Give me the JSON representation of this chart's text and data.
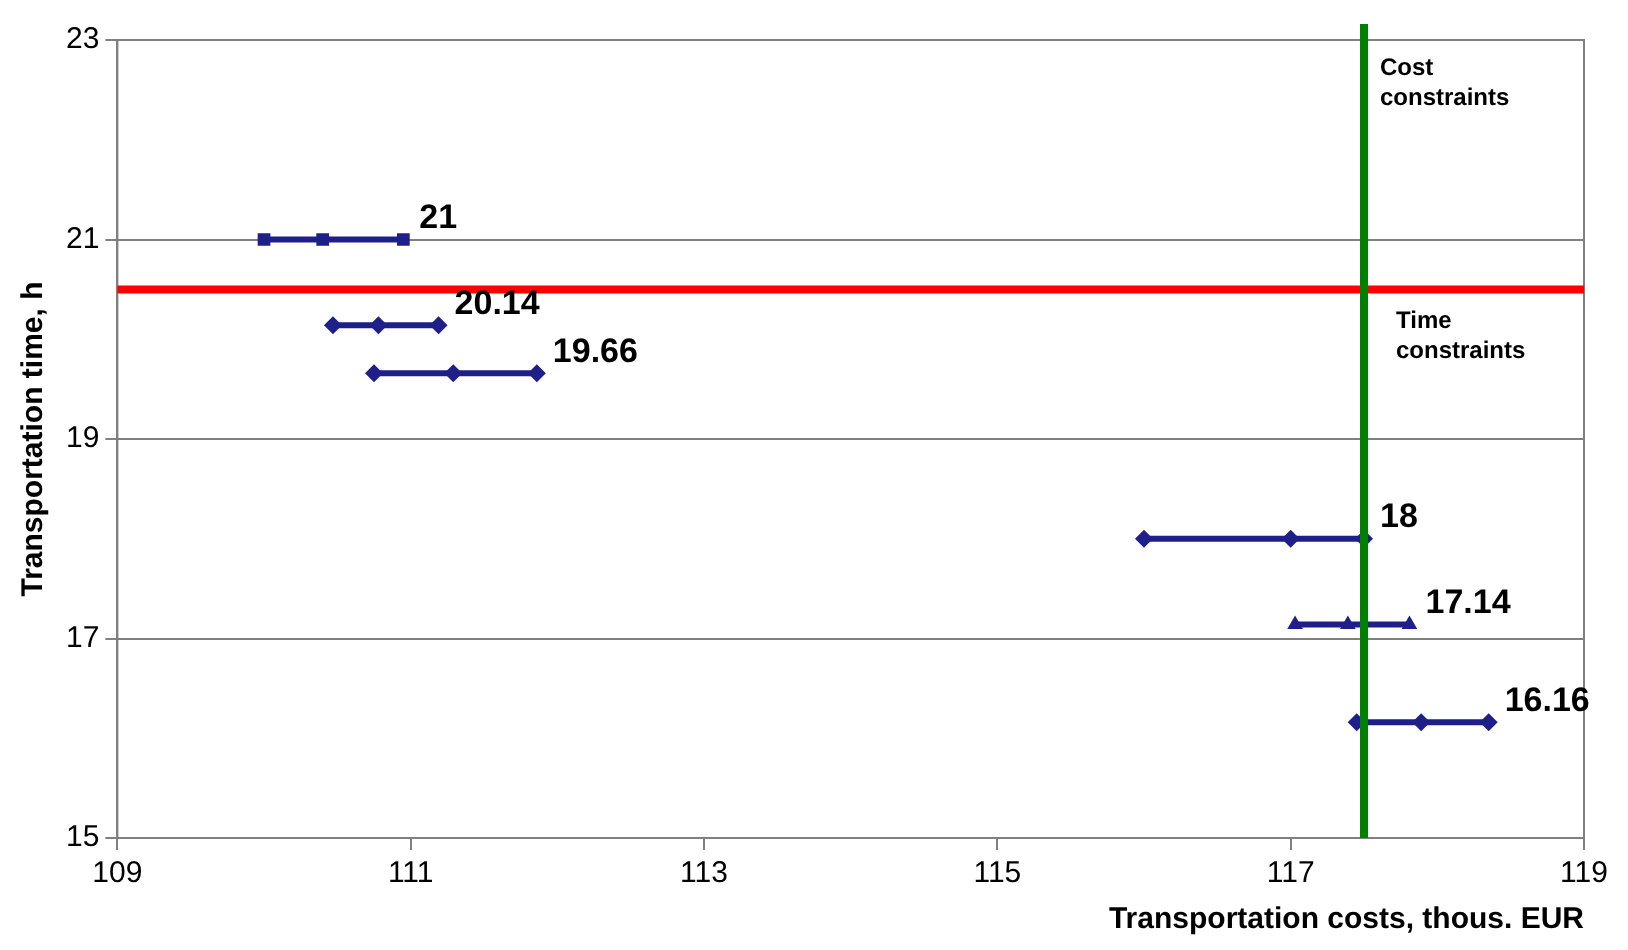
{
  "chart_data": {
    "type": "line",
    "xlabel": "Transportation costs, thous. EUR",
    "ylabel": "Transportation time, h",
    "xlim": [
      109,
      119
    ],
    "xticks": [
      109,
      111,
      113,
      115,
      117,
      119
    ],
    "ylim": [
      15,
      23
    ],
    "yticks": [
      15,
      17,
      19,
      21,
      23
    ],
    "grid": "y",
    "legend": false,
    "series": [
      {
        "color": "#1f1f8a",
        "marker": "square",
        "x": [
          110.0,
          110.4,
          110.95
        ],
        "values": [
          21,
          21,
          21
        ],
        "value_labels": [
          null,
          null,
          "21"
        ]
      },
      {
        "color": "#1f1f8a",
        "marker": "diamond",
        "x": [
          110.47,
          110.78,
          111.19
        ],
        "values": [
          20.14,
          20.14,
          20.14
        ],
        "value_labels": [
          null,
          null,
          "20.14"
        ]
      },
      {
        "color": "#1f1f8a",
        "marker": "diamond",
        "x": [
          110.75,
          111.29,
          111.86
        ],
        "values": [
          19.66,
          19.66,
          19.66
        ],
        "value_labels": [
          null,
          null,
          "19.66"
        ]
      },
      {
        "color": "#1f1f8a",
        "marker": "diamond",
        "x": [
          116.0,
          117.0,
          117.5
        ],
        "values": [
          18,
          18,
          18
        ],
        "value_labels": [
          null,
          null,
          "18"
        ]
      },
      {
        "color": "#1f1f8a",
        "marker": "triangle",
        "x": [
          117.03,
          117.39,
          117.81
        ],
        "values": [
          17.14,
          17.14,
          17.14
        ],
        "value_labels": [
          null,
          null,
          "17.14"
        ]
      },
      {
        "color": "#1f1f8a",
        "marker": "diamond",
        "x": [
          117.45,
          117.89,
          118.35
        ],
        "values": [
          16.16,
          16.16,
          16.16
        ],
        "value_labels": [
          null,
          null,
          "16.16"
        ]
      }
    ],
    "ref_lines": [
      {
        "axis": "y",
        "value": 20.5,
        "label": "Time constraints",
        "color": "#ff0000"
      },
      {
        "axis": "x",
        "value": 117.5,
        "label": "Cost constraints",
        "color": "#008000"
      }
    ]
  }
}
